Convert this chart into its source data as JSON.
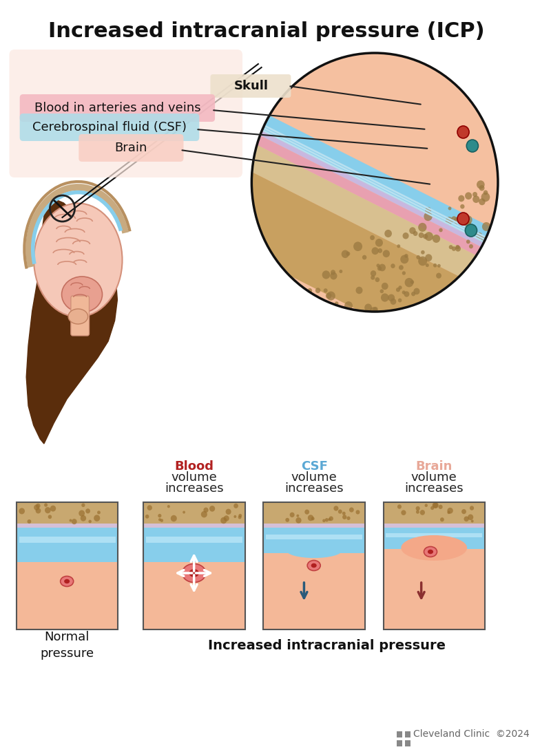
{
  "title": "Increased intracranial pressure (ICP)",
  "title_fontsize": 22,
  "title_fontweight": "bold",
  "bg_color": "#ffffff",
  "labels": {
    "skull": "Skull",
    "blood": "Blood in arteries and veins",
    "csf": "Cerebrospinal fluid (CSF)",
    "brain": "Brain"
  },
  "highlight_colors": {
    "skull": "#ede0cc",
    "blood": "#f4b8c1",
    "csf": "#aedce8",
    "brain": "#f9cfc4"
  },
  "bottom_label_colors": {
    "blood_col": "#b22222",
    "csf_col": "#5ba8d4",
    "brain_col": "#e8a898"
  },
  "panel_border_color": "#555555",
  "cleveland_clinic_color": "#666666",
  "copyright_text": "Cleveland Clinic  ©2024"
}
